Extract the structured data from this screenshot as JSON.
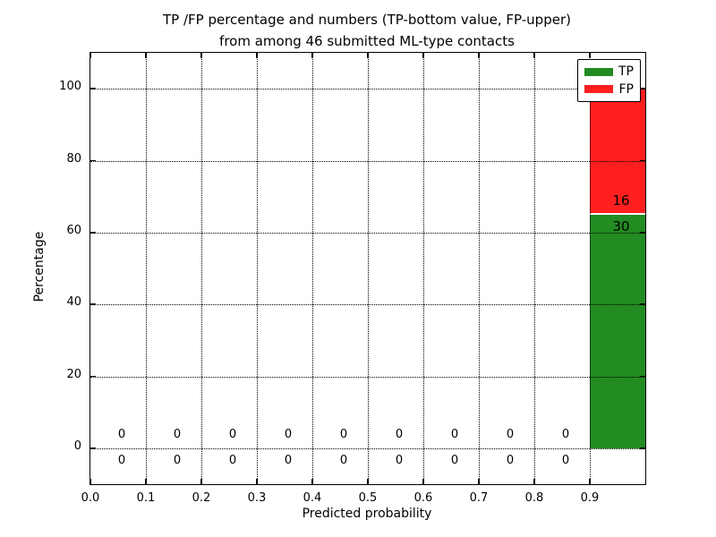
{
  "chart_data": {
    "type": "bar",
    "stacked": true,
    "title": "TP /FP percentage and numbers (TP-bottom value, FP-upper) from among 46 submitted ML-type contacts",
    "title_line1": "TP /FP percentage and numbers (TP-bottom value, FP-upper)",
    "title_line2": "from among 46 submitted ML-type contacts",
    "xlabel": "Predicted probability",
    "ylabel": "Percentage",
    "total_contacts": 46,
    "xlim": [
      0.0,
      1.0
    ],
    "ylim": [
      -10,
      110
    ],
    "x_ticks": [
      "0.0",
      "0.1",
      "0.2",
      "0.3",
      "0.4",
      "0.5",
      "0.6",
      "0.7",
      "0.8",
      "0.9"
    ],
    "y_ticks": [
      "0",
      "20",
      "40",
      "60",
      "80",
      "100"
    ],
    "grid": "dotted",
    "legend_position": "upper right",
    "series": [
      {
        "name": "TP",
        "color": "#228b22"
      },
      {
        "name": "FP",
        "color": "#ff1f1f"
      }
    ],
    "bins": [
      {
        "range": [
          0.0,
          0.1
        ],
        "tp": 0,
        "fp": 0
      },
      {
        "range": [
          0.1,
          0.2
        ],
        "tp": 0,
        "fp": 0
      },
      {
        "range": [
          0.2,
          0.3
        ],
        "tp": 0,
        "fp": 0
      },
      {
        "range": [
          0.3,
          0.4
        ],
        "tp": 0,
        "fp": 0
      },
      {
        "range": [
          0.4,
          0.5
        ],
        "tp": 0,
        "fp": 0
      },
      {
        "range": [
          0.5,
          0.6
        ],
        "tp": 0,
        "fp": 0
      },
      {
        "range": [
          0.6,
          0.7
        ],
        "tp": 0,
        "fp": 0
      },
      {
        "range": [
          0.7,
          0.8
        ],
        "tp": 0,
        "fp": 0
      },
      {
        "range": [
          0.8,
          0.9
        ],
        "tp": 0,
        "fp": 0
      },
      {
        "range": [
          0.9,
          1.0
        ],
        "tp": 30,
        "fp": 16,
        "tp_pct": 65.2,
        "fp_pct": 34.8
      }
    ]
  }
}
